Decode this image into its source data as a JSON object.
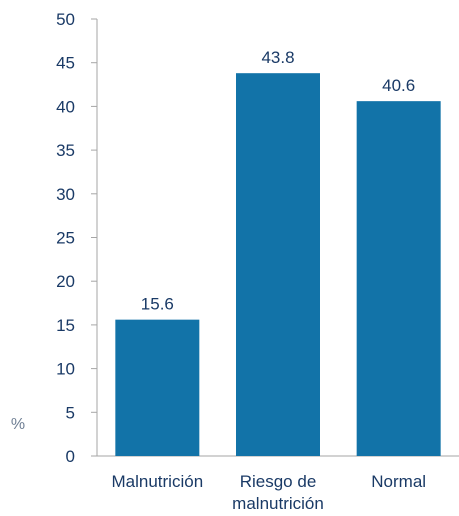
{
  "chart_data": {
    "type": "bar",
    "categories": [
      "Malnutrición",
      "Riesgo de malnutrición",
      "Normal"
    ],
    "category_lines": [
      [
        "Malnutrición"
      ],
      [
        "Riesgo de",
        "malnutrición"
      ],
      [
        "Normal"
      ]
    ],
    "values": [
      15.6,
      43.8,
      40.6
    ],
    "data_labels": [
      "15.6",
      "43.8",
      "40.6"
    ],
    "ylabel": "%",
    "ylim": [
      0,
      50
    ],
    "yticks": [
      0,
      5,
      10,
      15,
      20,
      25,
      30,
      35,
      40,
      45,
      50
    ],
    "grid": false,
    "bar_color": "#1273a8",
    "axis_color": "#a6a6a6",
    "text_color": "#1a3a66"
  }
}
